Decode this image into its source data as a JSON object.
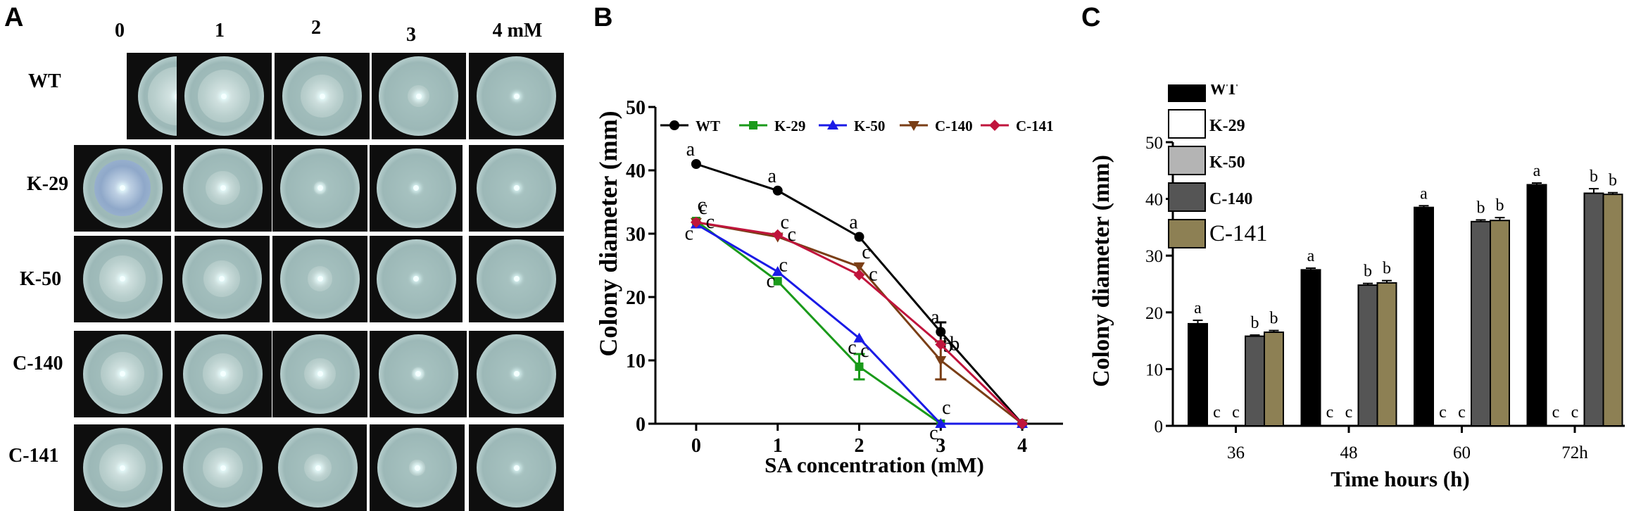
{
  "panel_labels": {
    "a": "A",
    "b": "B",
    "c": "C"
  },
  "panel_a": {
    "columns": [
      "0",
      "1",
      "2",
      "3",
      "4 mM"
    ],
    "rows": [
      "WT",
      "K-29",
      "K-50",
      "C-140",
      "C-141"
    ]
  },
  "chart_data": [
    {
      "type": "line",
      "panel": "B",
      "title": "",
      "xlabel": "SA concentration (mM)",
      "ylabel": "Colony diameter (mm)",
      "x": [
        0,
        1,
        2,
        3,
        4
      ],
      "xlim": [
        -0.5,
        4.5
      ],
      "ylim": [
        0,
        50
      ],
      "yticks": [
        0,
        10,
        20,
        30,
        40,
        50
      ],
      "legend_position": "top",
      "series": [
        {
          "name": "WT",
          "color": "#000000",
          "marker": "circle",
          "values": [
            41,
            36.8,
            29.5,
            14.5,
            0
          ],
          "errors": [
            0,
            0,
            0,
            1.5,
            0
          ],
          "letters": [
            "a",
            "a",
            "a",
            "a",
            ""
          ]
        },
        {
          "name": "K-29",
          "color": "#1a9a1a",
          "marker": "square",
          "values": [
            32,
            22.5,
            9,
            0,
            0
          ],
          "errors": [
            0,
            0,
            2,
            0,
            0
          ],
          "letters": [
            "c",
            "c",
            "c",
            "c",
            ""
          ]
        },
        {
          "name": "K-50",
          "color": "#1a1ae6",
          "marker": "triangle",
          "values": [
            31.5,
            24,
            13.5,
            0,
            0
          ],
          "errors": [
            0,
            0,
            0,
            0,
            0
          ],
          "letters": [
            "c",
            "c",
            "c",
            "c",
            ""
          ]
        },
        {
          "name": "C-140",
          "color": "#7a3e16",
          "marker": "triangle-down",
          "values": [
            31.8,
            29.5,
            24.8,
            10,
            0
          ],
          "errors": [
            0,
            0,
            0,
            3,
            0
          ],
          "letters": [
            "c",
            "c",
            "c",
            "b",
            ""
          ]
        },
        {
          "name": "C-141",
          "color": "#c0143c",
          "marker": "diamond",
          "values": [
            31.8,
            29.8,
            23.5,
            12.5,
            0
          ],
          "errors": [
            0,
            0,
            0,
            0,
            0
          ],
          "letters": [
            "c",
            "c",
            "c",
            "b",
            ""
          ]
        }
      ]
    },
    {
      "type": "bar",
      "panel": "C",
      "title": "",
      "xlabel": "Time hours (h)",
      "ylabel": "Colony diameter (mm)",
      "categories": [
        "36",
        "48",
        "60",
        "72h"
      ],
      "ylim": [
        0,
        50
      ],
      "yticks": [
        0,
        10,
        20,
        30,
        40,
        50
      ],
      "legend_position": "top-left",
      "series": [
        {
          "name": "WT",
          "color": "#000000",
          "values": [
            18,
            27.5,
            38.5,
            42.5
          ],
          "errors": [
            0.6,
            0.3,
            0.3,
            0.3
          ],
          "letters": [
            "a",
            "a",
            "a",
            "a"
          ]
        },
        {
          "name": "K-29",
          "color": "#ffffff",
          "values": [
            0,
            0,
            0,
            0
          ],
          "errors": [
            0,
            0,
            0,
            0
          ],
          "letters": [
            "c",
            "c",
            "c",
            "c"
          ]
        },
        {
          "name": "K-50",
          "color": "#b4b4b4",
          "values": [
            0,
            0,
            0,
            0
          ],
          "errors": [
            0,
            0,
            0,
            0
          ],
          "letters": [
            "c",
            "c",
            "c",
            "c"
          ]
        },
        {
          "name": "C-140",
          "color": "#555555",
          "values": [
            15.8,
            24.8,
            36,
            41
          ],
          "errors": [
            0.2,
            0.3,
            0.3,
            0.8
          ],
          "letters": [
            "b",
            "b",
            "b",
            "b"
          ]
        },
        {
          "name": "C-141",
          "color": "#8d8054",
          "values": [
            16.5,
            25.2,
            36.2,
            40.8
          ],
          "errors": [
            0.3,
            0.4,
            0.5,
            0.3
          ],
          "letters": [
            "b",
            "b",
            "b",
            "b"
          ]
        }
      ]
    }
  ]
}
